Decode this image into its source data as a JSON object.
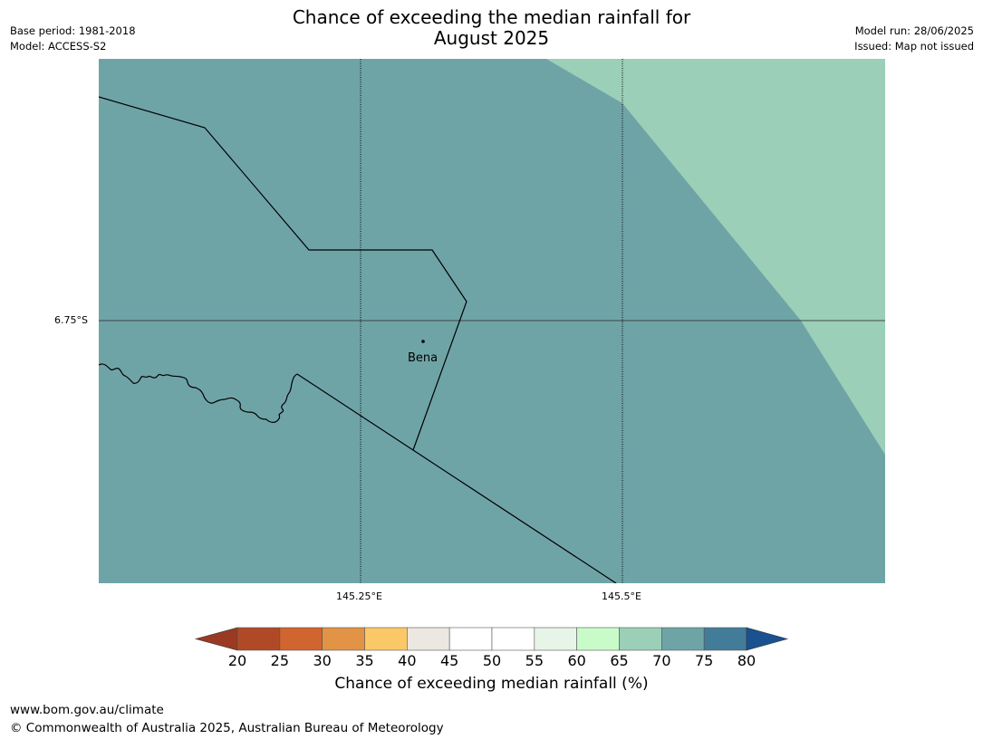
{
  "title": "Chance of exceeding the median rainfall for",
  "title_line2": "August 2025",
  "meta_left": [
    "Base period: 1981-2018",
    "Model: ACCESS-S2"
  ],
  "meta_right": [
    "Model run: 28/06/2025",
    "Issued: Map not issued"
  ],
  "map": {
    "lat_labels": [
      "6.75°S"
    ],
    "lon_labels": [
      "145.25°E",
      "145.5°E"
    ],
    "place": "Bena",
    "colors": {
      "band_70_75": "#6fa4a7",
      "band_65_70": "#9ccfb8",
      "border": "#000000",
      "grid": "#000000"
    }
  },
  "colorbar": {
    "ticks": [
      "20",
      "25",
      "30",
      "35",
      "40",
      "45",
      "50",
      "55",
      "60",
      "65",
      "70",
      "75",
      "80"
    ],
    "under_color": "#9b3a22",
    "over_color": "#1a5190",
    "bin_colors": [
      "#b04a26",
      "#d0652f",
      "#e29346",
      "#fbc867",
      "#ece8e1",
      "#ffffff",
      "#ffffff",
      "#e6f5e7",
      "#c9fbc8",
      "#9ccfb8",
      "#6fa4a7",
      "#437c99"
    ],
    "label": "Chance of exceeding median rainfall (%)"
  },
  "footer": {
    "url": "www.bom.gov.au/climate",
    "copyright": "© Commonwealth of Australia 2025, Australian Bureau of Meteorology"
  }
}
